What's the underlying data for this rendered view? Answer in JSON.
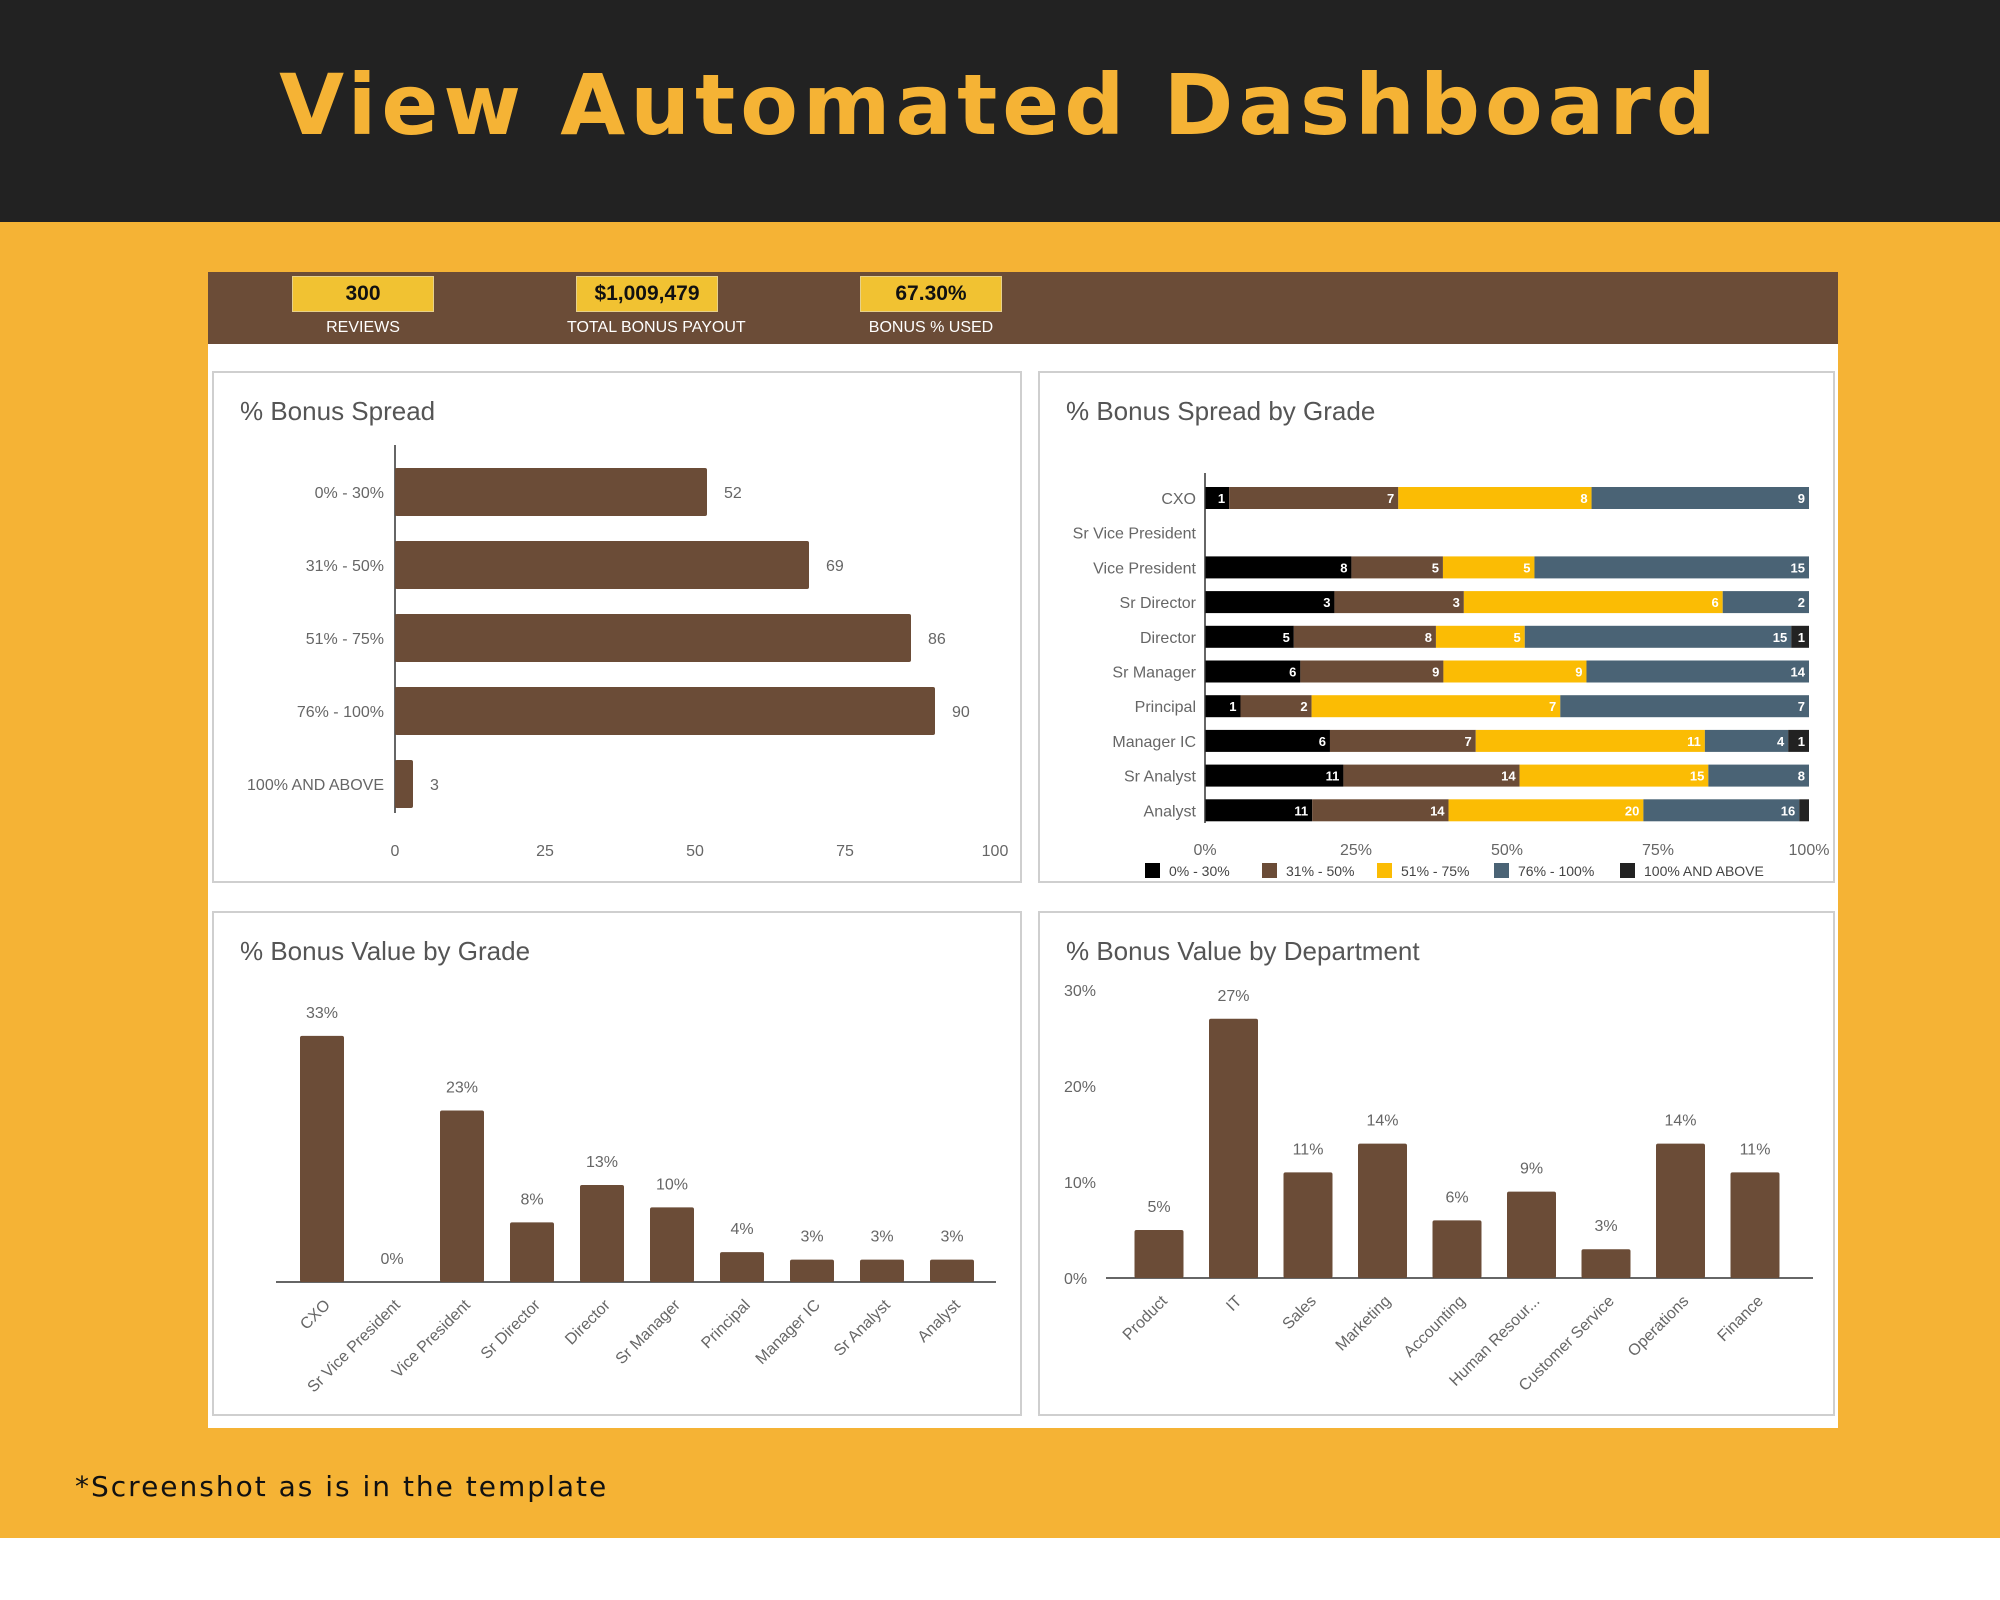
{
  "page": {
    "title": "View Automated Dashboard",
    "footnote": "*Screenshot as is in the template"
  },
  "colors": {
    "header_bg": "#222222",
    "accent": "#F5B335",
    "bar_brown": "#6B4C37",
    "kpi_box": "#F1C232"
  },
  "kpis": [
    {
      "value": "300",
      "label": "REVIEWS"
    },
    {
      "value": "$1,009,479",
      "label": "TOTAL BONUS PAYOUT"
    },
    {
      "value": "67.30%",
      "label": "BONUS % USED"
    }
  ],
  "chart_data": [
    {
      "type": "bar",
      "orientation": "horizontal",
      "title": "% Bonus Spread",
      "categories": [
        "0% - 30%",
        "31% - 50%",
        "51% - 75%",
        "76% - 100%",
        "100% AND ABOVE"
      ],
      "values": [
        52,
        69,
        86,
        90,
        3
      ],
      "xlim": [
        0,
        100
      ],
      "xticks": [
        0,
        25,
        50,
        75,
        100
      ],
      "color": "#6B4C37",
      "grid": false
    },
    {
      "type": "bar",
      "orientation": "horizontal",
      "stacked": "percent",
      "title": "% Bonus Spread by Grade",
      "categories": [
        "CXO",
        "Sr Vice President",
        "Vice President",
        "Sr Director",
        "Director",
        "Sr Manager",
        "Principal",
        "Manager IC",
        "Sr Analyst",
        "Analyst"
      ],
      "series": [
        {
          "name": "0% - 30%",
          "color": "#000000",
          "values": [
            1,
            0,
            8,
            3,
            5,
            6,
            1,
            6,
            11,
            11
          ]
        },
        {
          "name": "31% - 50%",
          "color": "#6B4C37",
          "values": [
            7,
            0,
            5,
            3,
            8,
            9,
            2,
            7,
            14,
            14
          ]
        },
        {
          "name": "51% - 75%",
          "color": "#FBBC04",
          "values": [
            8,
            0,
            5,
            6,
            5,
            9,
            7,
            11,
            15,
            20
          ]
        },
        {
          "name": "76% - 100%",
          "color": "#4A6375",
          "values": [
            9,
            0,
            15,
            2,
            15,
            14,
            7,
            4,
            8,
            16
          ]
        },
        {
          "name": "100% AND ABOVE",
          "color": "#222222",
          "values": [
            0,
            0,
            0,
            0,
            1,
            0,
            0,
            1,
            0,
            1
          ]
        }
      ],
      "xticks": [
        "0%",
        "25%",
        "50%",
        "75%",
        "100%"
      ],
      "legend": "bottom"
    },
    {
      "type": "bar",
      "title": "% Bonus Value by Grade",
      "categories": [
        "CXO",
        "Sr Vice President",
        "Vice President",
        "Sr Director",
        "Director",
        "Sr Manager",
        "Principal",
        "Manager IC",
        "Sr Analyst",
        "Analyst"
      ],
      "values": [
        33,
        0,
        23,
        8,
        13,
        10,
        4,
        3,
        3,
        3
      ],
      "value_labels": [
        "33%",
        "0%",
        "23%",
        "8%",
        "13%",
        "10%",
        "4%",
        "3%",
        "3%",
        "3%"
      ],
      "ylim": [
        0,
        35
      ],
      "color": "#6B4C37"
    },
    {
      "type": "bar",
      "title": "% Bonus Value by Department",
      "categories": [
        "Product",
        "IT",
        "Sales",
        "Marketing",
        "Accounting",
        "Human Resour...",
        "Customer Service",
        "Operations",
        "Finance"
      ],
      "values": [
        5,
        27,
        11,
        14,
        6,
        9,
        3,
        14,
        11
      ],
      "value_labels": [
        "5%",
        "27%",
        "11%",
        "14%",
        "6%",
        "9%",
        "3%",
        "14%",
        "11%"
      ],
      "ylim": [
        0,
        30
      ],
      "yticks": [
        "0%",
        "10%",
        "20%",
        "30%"
      ],
      "color": "#6B4C37"
    }
  ]
}
